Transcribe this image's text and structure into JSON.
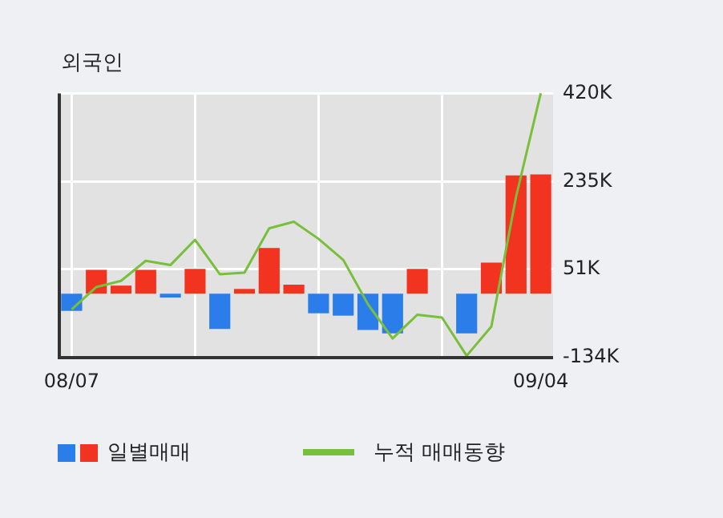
{
  "chart_data": {
    "type": "bar",
    "title": "외국인",
    "categories": [
      "08/07",
      null,
      null,
      null,
      null,
      null,
      null,
      null,
      null,
      null,
      null,
      null,
      null,
      null,
      null,
      null,
      null,
      null,
      null,
      "09/04"
    ],
    "series": [
      {
        "name": "일별매매",
        "colors": [
          "#2b7de9",
          "#f2331f",
          "#f2331f",
          "#f2331f",
          "#2b7de9",
          "#f2331f",
          "#2b7de9",
          "#f2331f",
          "#f2331f",
          "#f2331f",
          "#2b7de9",
          "#2b7de9",
          "#2b7de9",
          "#2b7de9",
          "#f2331f",
          "#f2331f",
          "#2b7de9",
          "#f2331f",
          "#f2331f",
          "#f2331f"
        ],
        "values": [
          -36000,
          50000,
          17000,
          50000,
          -8000,
          52000,
          -74000,
          10000,
          96000,
          19000,
          -41000,
          -46000,
          -76000,
          -83000,
          52000,
          0,
          -83000,
          65000,
          248000,
          250000
        ]
      },
      {
        "name": "누적 매매동향",
        "type": "line",
        "color": "#78bf3c",
        "values": [
          -33000,
          14000,
          27000,
          69000,
          60000,
          113000,
          41000,
          44000,
          137000,
          151000,
          115000,
          71000,
          -22000,
          -94000,
          -44000,
          -50000,
          -130000,
          -69000,
          203000,
          420000
        ]
      }
    ],
    "ylim": [
      -134000,
      420000
    ],
    "yticks": [
      {
        "value": -134000,
        "label": "-134K"
      },
      {
        "value": 51000,
        "label": "51K"
      },
      {
        "value": 235000,
        "label": "235K"
      },
      {
        "value": 420000,
        "label": "420K"
      }
    ],
    "grid": true,
    "legend": "bottom",
    "marker": "none"
  }
}
